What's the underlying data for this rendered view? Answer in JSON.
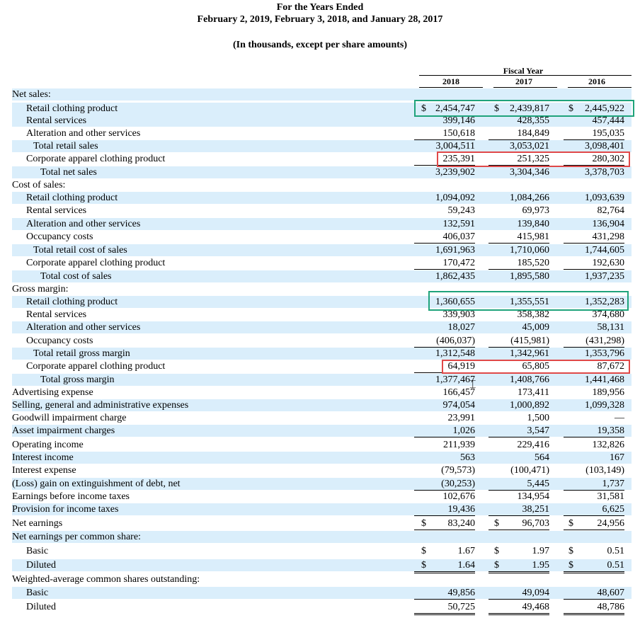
{
  "header": {
    "line1": "For the Years Ended",
    "line2": "February 2, 2019, February 3, 2018, and January 28, 2017",
    "line3": "(In thousands, except per share amounts)"
  },
  "columns": {
    "fiscal_year_label": "Fiscal Year",
    "years": [
      "2018",
      "2017",
      "2016"
    ]
  },
  "rows": [
    {
      "label": "Net sales:",
      "indent": 0,
      "vals": [
        "",
        "",
        ""
      ],
      "shade": true
    },
    {
      "label": "Retail clothing product",
      "indent": 1,
      "vals": [
        "2,454,747",
        "2,439,817",
        "2,445,922"
      ],
      "dollar": true,
      "shade": true
    },
    {
      "label": "Rental services",
      "indent": 1,
      "vals": [
        "399,146",
        "428,355",
        "457,444"
      ],
      "shade": true
    },
    {
      "label": "Alteration and other services",
      "indent": 1,
      "vals": [
        "150,618",
        "184,849",
        "195,035"
      ],
      "ul": true
    },
    {
      "label": "Total retail sales",
      "indent": 2,
      "vals": [
        "3,004,511",
        "3,053,021",
        "3,098,401"
      ],
      "shade": true
    },
    {
      "label": "Corporate apparel clothing product",
      "indent": 1,
      "vals": [
        "235,391",
        "251,325",
        "280,302"
      ],
      "ul": true
    },
    {
      "label": "Total net sales",
      "indent": 3,
      "vals": [
        "3,239,902",
        "3,304,346",
        "3,378,703"
      ],
      "shade": true
    },
    {
      "label": "Cost of sales:",
      "indent": 0,
      "vals": [
        "",
        "",
        ""
      ]
    },
    {
      "label": "Retail clothing product",
      "indent": 1,
      "vals": [
        "1,094,092",
        "1,084,266",
        "1,093,639"
      ],
      "shade": true
    },
    {
      "label": "Rental services",
      "indent": 1,
      "vals": [
        "59,243",
        "69,973",
        "82,764"
      ]
    },
    {
      "label": "Alteration and other services",
      "indent": 1,
      "vals": [
        "132,591",
        "139,840",
        "136,904"
      ],
      "shade": true
    },
    {
      "label": "Occupancy costs",
      "indent": 1,
      "vals": [
        "406,037",
        "415,981",
        "431,298"
      ],
      "ul": true
    },
    {
      "label": "Total retail cost of sales",
      "indent": 2,
      "vals": [
        "1,691,963",
        "1,710,060",
        "1,744,605"
      ],
      "shade": true
    },
    {
      "label": "Corporate apparel clothing product",
      "indent": 1,
      "vals": [
        "170,472",
        "185,520",
        "192,630"
      ],
      "ul": true
    },
    {
      "label": "Total cost of sales",
      "indent": 3,
      "vals": [
        "1,862,435",
        "1,895,580",
        "1,937,235"
      ],
      "shade": true
    },
    {
      "label": "Gross margin:",
      "indent": 0,
      "vals": [
        "",
        "",
        ""
      ]
    },
    {
      "label": "Retail clothing product",
      "indent": 1,
      "vals": [
        "1,360,655",
        "1,355,551",
        "1,352,283"
      ],
      "shade": true
    },
    {
      "label": "Rental services",
      "indent": 1,
      "vals": [
        "339,903",
        "358,382",
        "374,680"
      ]
    },
    {
      "label": "Alteration and other services",
      "indent": 1,
      "vals": [
        "18,027",
        "45,009",
        "58,131"
      ],
      "shade": true
    },
    {
      "label": "Occupancy costs",
      "indent": 1,
      "vals": [
        "(406,037)",
        "(415,981)",
        "(431,298)"
      ],
      "ul": true
    },
    {
      "label": "Total retail gross margin",
      "indent": 2,
      "vals": [
        "1,312,548",
        "1,342,961",
        "1,353,796"
      ],
      "shade": true
    },
    {
      "label": "Corporate apparel clothing product",
      "indent": 1,
      "vals": [
        "64,919",
        "65,805",
        "87,672"
      ],
      "ul": true
    },
    {
      "label": "Total gross margin",
      "indent": 3,
      "vals": [
        "1,377,467",
        "1,408,766",
        "1,441,468"
      ],
      "shade": true
    },
    {
      "label": "Advertising expense",
      "indent": 0,
      "vals": [
        "166,457",
        "173,411",
        "189,956"
      ]
    },
    {
      "label": "Selling, general and administrative expenses",
      "indent": 0,
      "vals": [
        "974,054",
        "1,000,892",
        "1,099,328"
      ],
      "shade": true
    },
    {
      "label": "Goodwill impairment charge",
      "indent": 0,
      "vals": [
        "23,991",
        "1,500",
        "—"
      ]
    },
    {
      "label": "Asset impairment charges",
      "indent": 0,
      "vals": [
        "1,026",
        "3,547",
        "19,358"
      ],
      "shade": true,
      "ul": true
    },
    {
      "label": "Operating income",
      "indent": 0,
      "vals": [
        "211,939",
        "229,416",
        "132,826"
      ]
    },
    {
      "label": "Interest income",
      "indent": 0,
      "vals": [
        "563",
        "564",
        "167"
      ],
      "shade": true
    },
    {
      "label": "Interest expense",
      "indent": 0,
      "vals": [
        "(79,573)",
        "(100,471)",
        "(103,149)"
      ]
    },
    {
      "label": "(Loss) gain on extinguishment of debt, net",
      "indent": 0,
      "vals": [
        "(30,253)",
        "5,445",
        "1,737"
      ],
      "shade": true,
      "ul": true
    },
    {
      "label": "Earnings before income taxes",
      "indent": 0,
      "vals": [
        "102,676",
        "134,954",
        "31,581"
      ]
    },
    {
      "label": "Provision for income taxes",
      "indent": 0,
      "vals": [
        "19,436",
        "38,251",
        "6,625"
      ],
      "shade": true,
      "ul": true
    },
    {
      "label": "Net earnings",
      "indent": 0,
      "vals": [
        "83,240",
        "96,703",
        "24,956"
      ],
      "dollar": true,
      "dul": true
    },
    {
      "label": "Net earnings per common share:",
      "indent": 0,
      "vals": [
        "",
        "",
        ""
      ],
      "shade": true
    },
    {
      "label": "Basic",
      "indent": 1,
      "vals": [
        "1.67",
        "1.97",
        "0.51"
      ],
      "dollar": true
    },
    {
      "label": "Diluted",
      "indent": 1,
      "vals": [
        "1.64",
        "1.95",
        "0.51"
      ],
      "dollar": true,
      "dul": true,
      "shade": true
    },
    {
      "label": "Weighted-average common shares outstanding:",
      "indent": 0,
      "vals": [
        "",
        "",
        ""
      ]
    },
    {
      "label": "Basic",
      "indent": 1,
      "vals": [
        "49,856",
        "49,094",
        "48,607"
      ],
      "shade": true,
      "ul": true
    },
    {
      "label": "Diluted",
      "indent": 1,
      "vals": [
        "50,725",
        "49,468",
        "48,786"
      ],
      "dul": true
    }
  ],
  "dollar_sign": "$",
  "highlight_colors": {
    "green": "#1fa37b",
    "red": "#e04848",
    "row_shade": "#daeefb"
  }
}
